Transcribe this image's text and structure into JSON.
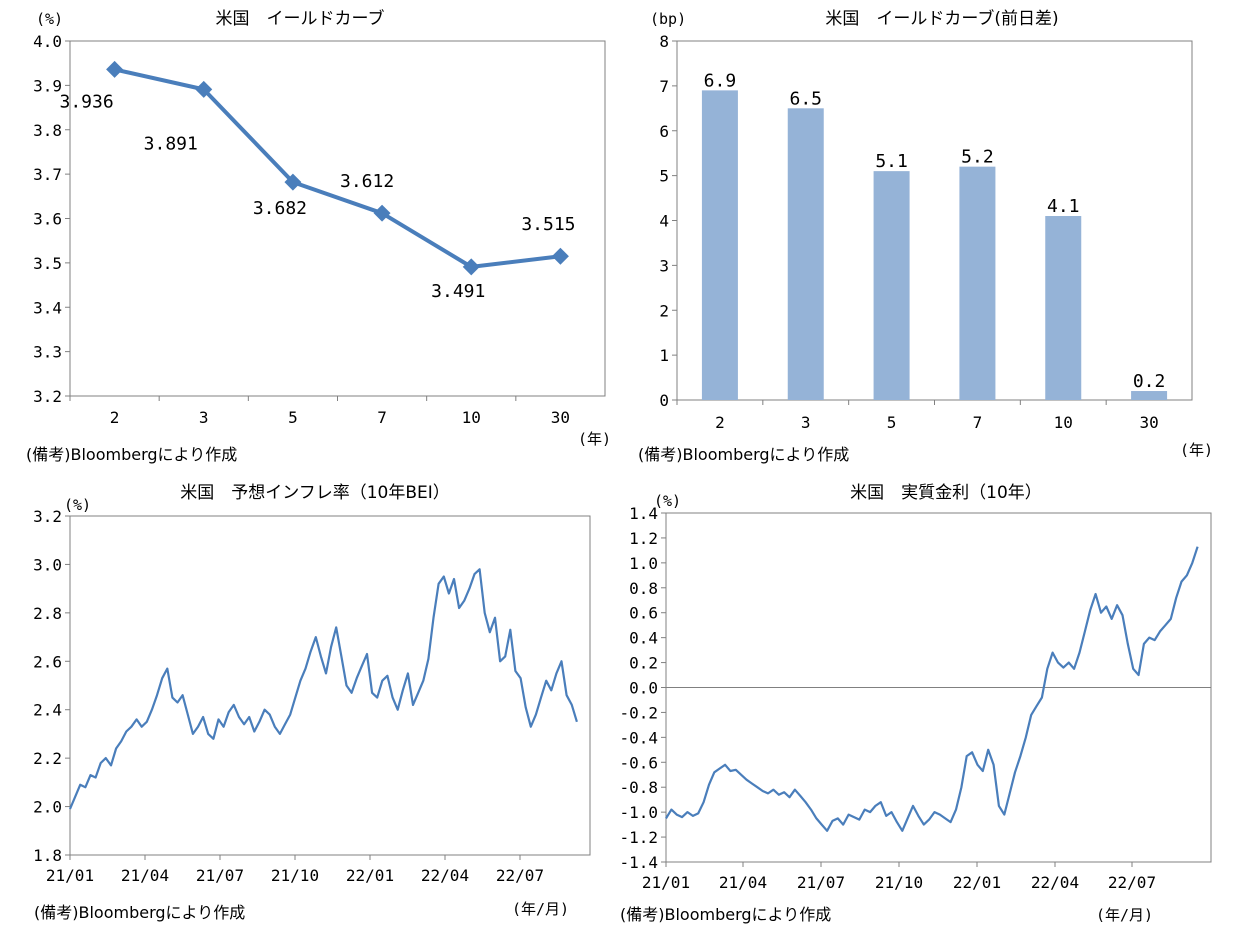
{
  "colors": {
    "line": "#4a7ebb",
    "bar": "#95b3d7",
    "axis": "#808080",
    "zero": "#808080"
  },
  "note": "(備考)Bloombergにより作成",
  "chart_data": [
    {
      "id": "c1",
      "type": "line",
      "title": "米国　イールドカーブ",
      "unit": "(%)",
      "xunit": "(年)",
      "categories": [
        "2",
        "3",
        "5",
        "7",
        "10",
        "30"
      ],
      "values": [
        3.936,
        3.891,
        3.682,
        3.612,
        3.491,
        3.515
      ],
      "labels": [
        "3.936",
        "3.891",
        "3.682",
        "3.612",
        "3.491",
        "3.515"
      ],
      "yticks": [
        "3.2",
        "3.3",
        "3.4",
        "3.5",
        "3.6",
        "3.7",
        "3.8",
        "3.9",
        "4.0"
      ],
      "ylim": [
        3.2,
        4.0
      ]
    },
    {
      "id": "c2",
      "type": "bar",
      "title": "米国　イールドカーブ(前日差)",
      "unit": "(bp)",
      "xunit": "(年)",
      "categories": [
        "2",
        "3",
        "5",
        "7",
        "10",
        "30"
      ],
      "values": [
        6.9,
        6.5,
        5.1,
        5.2,
        4.1,
        0.2
      ],
      "labels": [
        "6.9",
        "6.5",
        "5.1",
        "5.2",
        "4.1",
        "0.2"
      ],
      "yticks": [
        "0",
        "1",
        "2",
        "3",
        "4",
        "5",
        "6",
        "7",
        "8"
      ],
      "ylim": [
        0,
        8
      ]
    },
    {
      "id": "c3",
      "type": "line",
      "title": "米国　予想インフレ率（10年BEI）",
      "unit": "(%)",
      "xunit": "(年/月)",
      "xticks": [
        "21/01",
        "21/04",
        "21/07",
        "21/10",
        "22/01",
        "22/04",
        "22/07"
      ],
      "yticks": [
        "1.8",
        "2.0",
        "2.2",
        "2.4",
        "2.6",
        "2.8",
        "3.0",
        "3.2"
      ],
      "ylim": [
        1.8,
        3.2
      ],
      "xlim": [
        0,
        100
      ],
      "x": [
        0,
        1,
        2,
        3,
        4,
        5,
        6,
        7,
        8,
        9,
        10,
        11,
        12,
        13,
        14,
        15,
        16,
        17,
        18,
        19,
        20,
        21,
        22,
        23,
        24,
        25,
        26,
        27,
        28,
        29,
        30,
        31,
        32,
        33,
        34,
        35,
        36,
        37,
        38,
        39,
        40,
        41,
        42,
        43,
        44,
        45,
        46,
        47,
        48,
        49,
        50,
        51,
        52,
        53,
        54,
        55,
        56,
        57,
        58,
        59,
        60,
        61,
        62,
        63,
        64,
        65,
        66,
        67,
        68,
        69,
        70,
        71,
        72,
        73,
        74,
        75,
        76,
        77,
        78,
        79,
        80,
        81,
        82,
        83,
        84,
        85,
        86,
        87,
        88,
        89,
        90,
        91,
        92,
        93,
        94,
        95,
        96,
        97,
        98,
        99
      ],
      "values": [
        1.99,
        2.04,
        2.09,
        2.08,
        2.13,
        2.12,
        2.18,
        2.2,
        2.17,
        2.24,
        2.27,
        2.31,
        2.33,
        2.36,
        2.33,
        2.35,
        2.4,
        2.46,
        2.53,
        2.57,
        2.45,
        2.43,
        2.46,
        2.38,
        2.3,
        2.33,
        2.37,
        2.3,
        2.28,
        2.36,
        2.33,
        2.39,
        2.42,
        2.37,
        2.34,
        2.37,
        2.31,
        2.35,
        2.4,
        2.38,
        2.33,
        2.3,
        2.34,
        2.38,
        2.45,
        2.52,
        2.57,
        2.64,
        2.7,
        2.62,
        2.55,
        2.66,
        2.74,
        2.62,
        2.5,
        2.47,
        2.53,
        2.58,
        2.63,
        2.47,
        2.45,
        2.52,
        2.54,
        2.45,
        2.4,
        2.48,
        2.55,
        2.42,
        2.47,
        2.52,
        2.61,
        2.78,
        2.92,
        2.95,
        2.88,
        2.94,
        2.82,
        2.85,
        2.9,
        2.96,
        2.98,
        2.8,
        2.72,
        2.78,
        2.6,
        2.62,
        2.73,
        2.56,
        2.53,
        2.41,
        2.33,
        2.38,
        2.45,
        2.52,
        2.48,
        2.55,
        2.6,
        2.46,
        2.42,
        2.35
      ]
    },
    {
      "id": "c4",
      "type": "line",
      "title": "米国　実質金利（10年）",
      "unit": "(%)",
      "xunit": "(年/月)",
      "xticks": [
        "21/01",
        "21/04",
        "21/07",
        "21/10",
        "22/01",
        "22/04",
        "22/07"
      ],
      "yticks": [
        "-1.4",
        "-1.2",
        "-1.0",
        "-0.8",
        "-0.6",
        "-0.4",
        "-0.2",
        "0.0",
        "0.2",
        "0.4",
        "0.6",
        "0.8",
        "1.0",
        "1.2",
        "1.4"
      ],
      "ylim": [
        -1.4,
        1.4
      ],
      "xlim": [
        0,
        100
      ],
      "x": [
        0,
        1,
        2,
        3,
        4,
        5,
        6,
        7,
        8,
        9,
        10,
        11,
        12,
        13,
        14,
        15,
        16,
        17,
        18,
        19,
        20,
        21,
        22,
        23,
        24,
        25,
        26,
        27,
        28,
        29,
        30,
        31,
        32,
        33,
        34,
        35,
        36,
        37,
        38,
        39,
        40,
        41,
        42,
        43,
        44,
        45,
        46,
        47,
        48,
        49,
        50,
        51,
        52,
        53,
        54,
        55,
        56,
        57,
        58,
        59,
        60,
        61,
        62,
        63,
        64,
        65,
        66,
        67,
        68,
        69,
        70,
        71,
        72,
        73,
        74,
        75,
        76,
        77,
        78,
        79,
        80,
        81,
        82,
        83,
        84,
        85,
        86,
        87,
        88,
        89,
        90,
        91,
        92,
        93,
        94,
        95,
        96,
        97,
        98,
        99
      ],
      "values": [
        -1.05,
        -0.98,
        -1.02,
        -1.04,
        -1.0,
        -1.03,
        -1.01,
        -0.92,
        -0.78,
        -0.68,
        -0.65,
        -0.62,
        -0.67,
        -0.66,
        -0.7,
        -0.74,
        -0.77,
        -0.8,
        -0.83,
        -0.85,
        -0.82,
        -0.86,
        -0.84,
        -0.88,
        -0.82,
        -0.87,
        -0.92,
        -0.98,
        -1.05,
        -1.1,
        -1.15,
        -1.07,
        -1.05,
        -1.1,
        -1.02,
        -1.04,
        -1.06,
        -0.98,
        -1.0,
        -0.95,
        -0.92,
        -1.03,
        -1.0,
        -1.08,
        -1.15,
        -1.05,
        -0.95,
        -1.03,
        -1.1,
        -1.06,
        -1.0,
        -1.02,
        -1.05,
        -1.08,
        -0.98,
        -0.8,
        -0.55,
        -0.52,
        -0.62,
        -0.67,
        -0.5,
        -0.62,
        -0.95,
        -1.02,
        -0.85,
        -0.68,
        -0.55,
        -0.4,
        -0.22,
        -0.15,
        -0.08,
        0.15,
        0.28,
        0.2,
        0.16,
        0.2,
        0.15,
        0.28,
        0.45,
        0.62,
        0.75,
        0.6,
        0.65,
        0.55,
        0.66,
        0.58,
        0.35,
        0.15,
        0.1,
        0.35,
        0.4,
        0.38,
        0.45,
        0.5,
        0.55,
        0.72,
        0.85,
        0.9,
        1.0,
        1.13
      ]
    }
  ]
}
